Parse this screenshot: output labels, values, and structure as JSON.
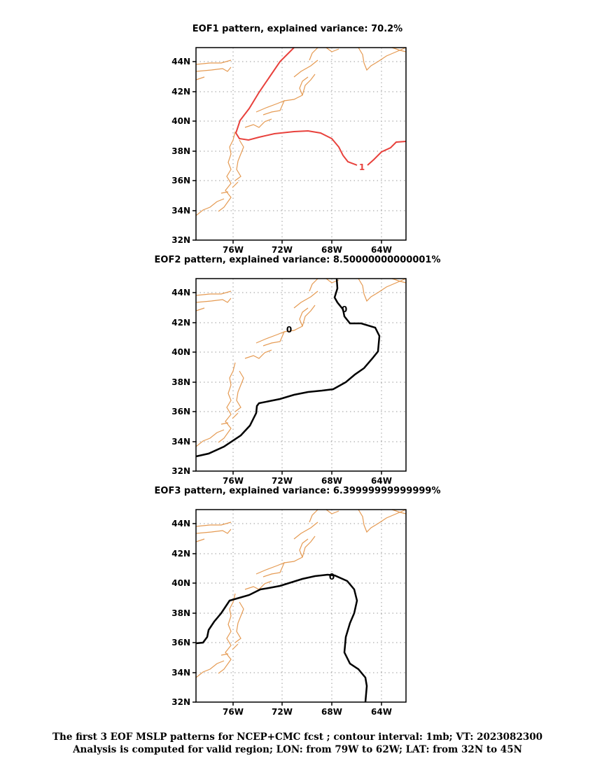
{
  "colors": {
    "coastline": "#e59a52",
    "grid": "#9a9a9a",
    "eof1_contour": "#e8413c",
    "eof23_contour": "#000000"
  },
  "map": {
    "lat_ticks": [
      "44N",
      "42N",
      "40N",
      "38N",
      "36N",
      "34N",
      "32N"
    ],
    "lon_ticks": [
      "76W",
      "72W",
      "68W",
      "64W"
    ]
  },
  "panels": [
    {
      "title": "EOF1 pattern, explained variance: 70.2%",
      "contour_labels": [
        {
          "text": "1"
        }
      ]
    },
    {
      "title": "EOF2 pattern, explained variance: 8.50000000000001%",
      "contour_labels": [
        {
          "text": "0"
        },
        {
          "text": "0"
        }
      ]
    },
    {
      "title": "EOF3 pattern, explained variance: 6.39999999999999%",
      "contour_labels": [
        {
          "text": "0"
        }
      ]
    }
  ],
  "caption": {
    "line1": "The first 3 EOF MSLP patterns for NCEP+CMC fcst ; contour interval: 1mb; VT: 2023082300",
    "line2": "Analysis is computed for valid region; LON: from 79W to 62W; LAT: from 32N to 45N"
  }
}
